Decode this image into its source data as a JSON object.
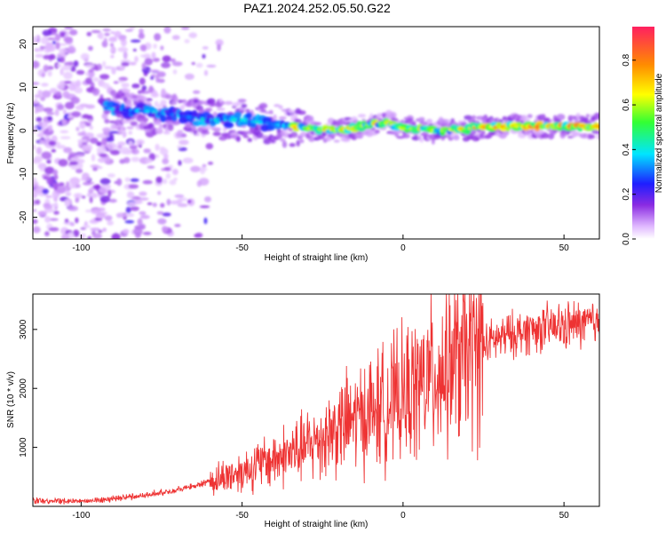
{
  "title": "PAZ1.2024.252.05.50.G22",
  "chart_data": [
    {
      "type": "heatmap",
      "title": "PAZ1.2024.252.05.50.G22",
      "xlabel": "Height of straight line (km)",
      "ylabel": "Frequency (Hz)",
      "xlim": [
        -115,
        61
      ],
      "ylim": [
        -25,
        24
      ],
      "x_ticks": [
        -100,
        -50,
        0,
        50
      ],
      "y_ticks": [
        -20,
        -10,
        0,
        10,
        20
      ],
      "ridge": {
        "x": [
          -90,
          -80,
          -70,
          -60,
          -50,
          -40,
          -30,
          -20,
          -10,
          -5,
          0,
          10,
          20,
          30,
          40,
          50,
          61
        ],
        "frequency": [
          5,
          4.5,
          3.5,
          2.5,
          2.5,
          1.5,
          0.5,
          0,
          1.5,
          1.8,
          0.5,
          0,
          0.5,
          1,
          1,
          1,
          1
        ]
      },
      "colorbar": {
        "label": "Normalized spectral amplitude",
        "range": [
          0.0,
          0.95
        ],
        "ticks": [
          0.0,
          0.2,
          0.4,
          0.6,
          0.8
        ],
        "tick_labels": [
          "0.0",
          "0.2",
          "0.4",
          "0.6",
          "0.8"
        ]
      },
      "grid": false
    },
    {
      "type": "line",
      "xlabel": "Height of straight line (km)",
      "ylabel": "SNR (10 * v/v)",
      "xlim": [
        -115,
        61
      ],
      "ylim": [
        0,
        3600
      ],
      "x_ticks": [
        -100,
        -50,
        0,
        50
      ],
      "y_ticks": [
        1000,
        2000,
        3000
      ],
      "series": [
        {
          "color": "#ee3333",
          "x": [
            -115,
            -100,
            -90,
            -80,
            -70,
            -60,
            -50,
            -40,
            -30,
            -20,
            -10,
            0,
            10,
            20,
            30,
            40,
            50,
            61
          ],
          "values": [
            100,
            90,
            130,
            190,
            280,
            420,
            600,
            800,
            1000,
            1350,
            1600,
            1850,
            2250,
            2600,
            2850,
            3000,
            3050,
            3130
          ]
        }
      ],
      "grid": false
    }
  ]
}
